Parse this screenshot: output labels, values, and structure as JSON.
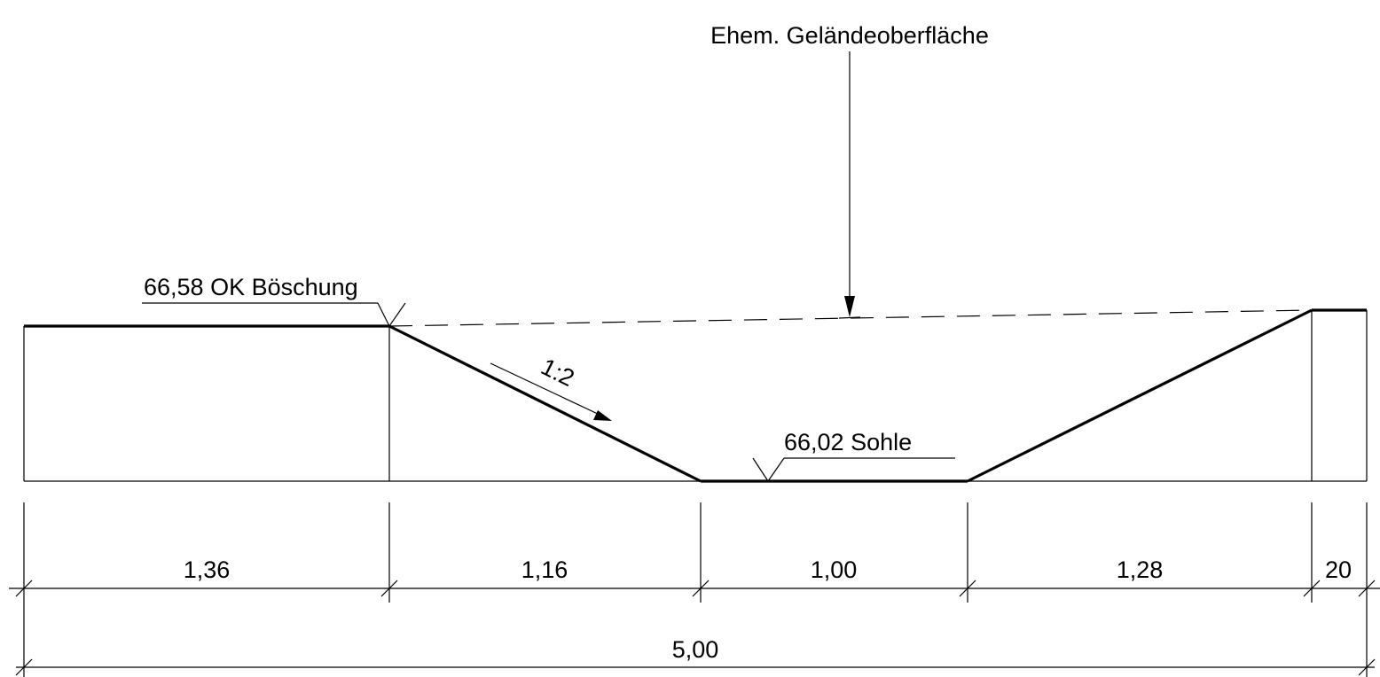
{
  "annotations": {
    "former_ground": "Ehem. Geländeoberfläche",
    "top_slope": "66,58 OK Böschung",
    "bottom": "66,02 Sohle",
    "slope_ratio": "1:2"
  },
  "dimensions": {
    "segments": [
      "1,36",
      "1,16",
      "1,00",
      "1,28",
      "20"
    ],
    "total": "5,00"
  }
}
